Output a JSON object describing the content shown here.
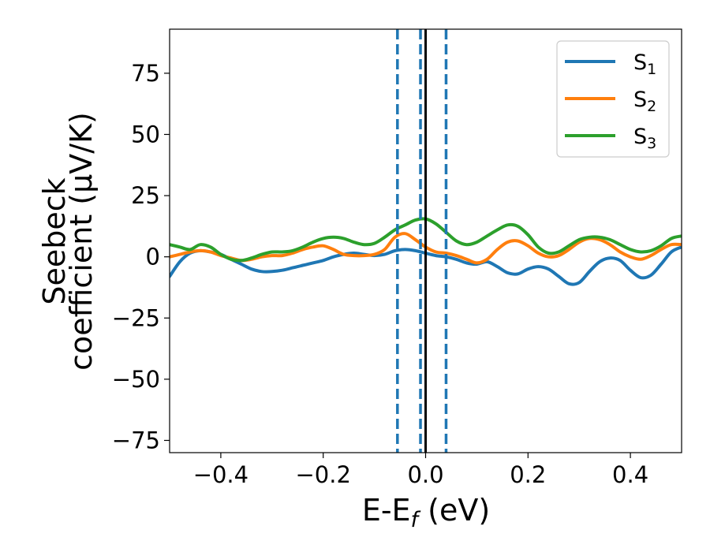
{
  "chart_data": {
    "type": "line",
    "xlabel": "E-E",
    "xlabel_sub": "f",
    "xlabel_unit": " (eV)",
    "ylabel_line1": "Seebeck",
    "ylabel_line2": "coefficient  (μV/K)",
    "xlim": [
      -0.5,
      0.5
    ],
    "ylim": [
      -80,
      93
    ],
    "xticks": [
      -0.4,
      -0.2,
      0.0,
      0.2,
      0.4
    ],
    "xtick_labels": [
      "−0.4",
      "−0.2",
      "0.0",
      "0.2",
      "0.4"
    ],
    "yticks": [
      -75,
      -50,
      -25,
      0,
      25,
      50,
      75
    ],
    "ytick_labels": [
      "−75",
      "−50",
      "−25",
      "0",
      "25",
      "50",
      "75"
    ],
    "grid": false,
    "legend_position": "top-right",
    "series": [
      {
        "name": "S",
        "sub": "1",
        "color": "#1f77b4",
        "points": [
          [
            -0.5,
            -8
          ],
          [
            -0.48,
            -2
          ],
          [
            -0.46,
            1.5
          ],
          [
            -0.44,
            2.5
          ],
          [
            -0.42,
            2
          ],
          [
            -0.4,
            1
          ],
          [
            -0.38,
            -1
          ],
          [
            -0.36,
            -3
          ],
          [
            -0.34,
            -5
          ],
          [
            -0.32,
            -6
          ],
          [
            -0.3,
            -6
          ],
          [
            -0.28,
            -5.5
          ],
          [
            -0.26,
            -4.5
          ],
          [
            -0.24,
            -3.5
          ],
          [
            -0.22,
            -2.5
          ],
          [
            -0.2,
            -1.5
          ],
          [
            -0.18,
            0
          ],
          [
            -0.16,
            1
          ],
          [
            -0.14,
            1.5
          ],
          [
            -0.12,
            1
          ],
          [
            -0.1,
            0.5
          ],
          [
            -0.08,
            1
          ],
          [
            -0.06,
            2.5
          ],
          [
            -0.04,
            3
          ],
          [
            -0.02,
            2.5
          ],
          [
            0.0,
            1.5
          ],
          [
            0.02,
            0.5
          ],
          [
            0.04,
            0
          ],
          [
            0.06,
            -1
          ],
          [
            0.08,
            -2.5
          ],
          [
            0.1,
            -3
          ],
          [
            0.12,
            -2
          ],
          [
            0.14,
            -4
          ],
          [
            0.16,
            -6.5
          ],
          [
            0.18,
            -7
          ],
          [
            0.2,
            -5
          ],
          [
            0.22,
            -4
          ],
          [
            0.24,
            -5
          ],
          [
            0.26,
            -8
          ],
          [
            0.28,
            -11
          ],
          [
            0.3,
            -10.5
          ],
          [
            0.32,
            -6
          ],
          [
            0.34,
            -2
          ],
          [
            0.36,
            -0.5
          ],
          [
            0.38,
            -1.5
          ],
          [
            0.4,
            -5.5
          ],
          [
            0.42,
            -8.5
          ],
          [
            0.44,
            -7.5
          ],
          [
            0.46,
            -3
          ],
          [
            0.48,
            2
          ],
          [
            0.5,
            4
          ]
        ]
      },
      {
        "name": "S",
        "sub": "2",
        "color": "#ff7f0e",
        "points": [
          [
            -0.5,
            0
          ],
          [
            -0.48,
            1
          ],
          [
            -0.46,
            2
          ],
          [
            -0.44,
            2.5
          ],
          [
            -0.42,
            2
          ],
          [
            -0.4,
            0.5
          ],
          [
            -0.38,
            -0.5
          ],
          [
            -0.36,
            -1.5
          ],
          [
            -0.34,
            -1
          ],
          [
            -0.32,
            0
          ],
          [
            -0.3,
            0.5
          ],
          [
            -0.28,
            0.5
          ],
          [
            -0.26,
            1.5
          ],
          [
            -0.24,
            3
          ],
          [
            -0.22,
            4
          ],
          [
            -0.2,
            4.5
          ],
          [
            -0.18,
            3
          ],
          [
            -0.16,
            1
          ],
          [
            -0.14,
            0.5
          ],
          [
            -0.12,
            0.5
          ],
          [
            -0.1,
            1
          ],
          [
            -0.08,
            3
          ],
          [
            -0.06,
            8
          ],
          [
            -0.04,
            9.5
          ],
          [
            -0.02,
            7
          ],
          [
            0.0,
            4
          ],
          [
            0.02,
            2
          ],
          [
            0.04,
            1.5
          ],
          [
            0.06,
            0.5
          ],
          [
            0.08,
            -1
          ],
          [
            0.1,
            -2.5
          ],
          [
            0.12,
            -1
          ],
          [
            0.14,
            3
          ],
          [
            0.16,
            6
          ],
          [
            0.18,
            6.5
          ],
          [
            0.2,
            4.5
          ],
          [
            0.22,
            1.5
          ],
          [
            0.24,
            0
          ],
          [
            0.26,
            0.5
          ],
          [
            0.28,
            3
          ],
          [
            0.3,
            6
          ],
          [
            0.32,
            7.5
          ],
          [
            0.34,
            7
          ],
          [
            0.36,
            5
          ],
          [
            0.38,
            2
          ],
          [
            0.4,
            0
          ],
          [
            0.42,
            -1
          ],
          [
            0.44,
            0.5
          ],
          [
            0.46,
            3
          ],
          [
            0.48,
            5
          ],
          [
            0.5,
            5
          ]
        ]
      },
      {
        "name": "S",
        "sub": "3",
        "color": "#2ca02c",
        "points": [
          [
            -0.5,
            5
          ],
          [
            -0.48,
            4
          ],
          [
            -0.46,
            3
          ],
          [
            -0.44,
            5
          ],
          [
            -0.42,
            4
          ],
          [
            -0.4,
            1
          ],
          [
            -0.38,
            -1
          ],
          [
            -0.36,
            -1.5
          ],
          [
            -0.34,
            -0.5
          ],
          [
            -0.32,
            1
          ],
          [
            -0.3,
            2
          ],
          [
            -0.28,
            2
          ],
          [
            -0.26,
            2.5
          ],
          [
            -0.24,
            4
          ],
          [
            -0.22,
            6
          ],
          [
            -0.2,
            7.5
          ],
          [
            -0.18,
            8
          ],
          [
            -0.16,
            7.5
          ],
          [
            -0.14,
            6
          ],
          [
            -0.12,
            5
          ],
          [
            -0.1,
            5.5
          ],
          [
            -0.08,
            8
          ],
          [
            -0.06,
            11
          ],
          [
            -0.04,
            13
          ],
          [
            -0.02,
            15
          ],
          [
            0.0,
            15.5
          ],
          [
            0.02,
            13.5
          ],
          [
            0.04,
            10
          ],
          [
            0.06,
            6.5
          ],
          [
            0.08,
            5
          ],
          [
            0.1,
            6
          ],
          [
            0.12,
            8.5
          ],
          [
            0.14,
            11
          ],
          [
            0.16,
            13
          ],
          [
            0.18,
            12.5
          ],
          [
            0.2,
            9
          ],
          [
            0.22,
            4
          ],
          [
            0.24,
            1.5
          ],
          [
            0.26,
            2
          ],
          [
            0.28,
            4.5
          ],
          [
            0.3,
            7
          ],
          [
            0.32,
            8
          ],
          [
            0.34,
            8
          ],
          [
            0.36,
            7
          ],
          [
            0.38,
            5
          ],
          [
            0.4,
            3
          ],
          [
            0.42,
            2
          ],
          [
            0.44,
            2.5
          ],
          [
            0.46,
            4.5
          ],
          [
            0.48,
            7.5
          ],
          [
            0.5,
            8.5
          ]
        ]
      }
    ],
    "vlines": [
      {
        "x": -0.055,
        "style": "dashed",
        "color": "#1f77b4"
      },
      {
        "x": -0.01,
        "style": "dashed",
        "color": "#1f77b4"
      },
      {
        "x": 0.04,
        "style": "dashed",
        "color": "#1f77b4"
      },
      {
        "x": 0.0,
        "style": "solid",
        "color": "#000000"
      }
    ]
  }
}
